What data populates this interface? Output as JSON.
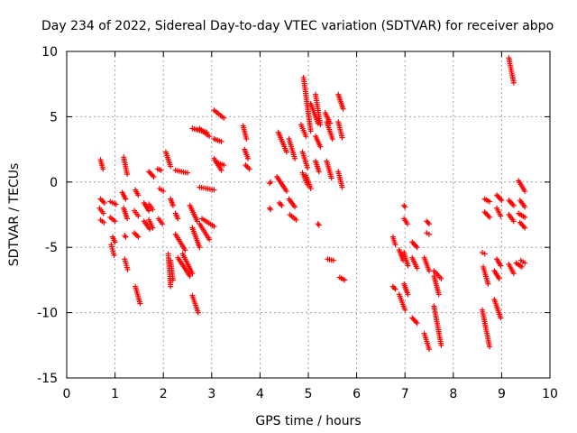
{
  "chart_data": {
    "type": "scatter",
    "title": "Day 234 of 2022, Sidereal Day-to-day VTEC variation (SDTVAR) for receiver abpo",
    "xlabel": "GPS time / hours",
    "ylabel": "SDTVAR / TECUs",
    "xlim": [
      0,
      10
    ],
    "ylim": [
      -15,
      10
    ],
    "x_ticks": [
      0,
      1,
      2,
      3,
      4,
      5,
      6,
      7,
      8,
      9,
      10
    ],
    "y_ticks": [
      -15,
      -10,
      -5,
      0,
      5,
      10
    ],
    "grid": true,
    "marker": "plus",
    "color": "#ff0000",
    "segments": [
      {
        "x0": 0.7,
        "y0": 1.7,
        "x1": 0.75,
        "y1": 1.0
      },
      {
        "x0": 0.7,
        "y0": -1.3,
        "x1": 0.78,
        "y1": -1.6
      },
      {
        "x0": 0.68,
        "y0": -2.0,
        "x1": 0.76,
        "y1": -2.4
      },
      {
        "x0": 0.7,
        "y0": -2.9,
        "x1": 0.77,
        "y1": -3.1
      },
      {
        "x0": 0.9,
        "y0": -1.5,
        "x1": 1.02,
        "y1": -1.7
      },
      {
        "x0": 0.9,
        "y0": -2.7,
        "x1": 1.0,
        "y1": -3.0
      },
      {
        "x0": 0.95,
        "y0": -4.2,
        "x1": 1.0,
        "y1": -4.6
      },
      {
        "x0": 0.92,
        "y0": -4.8,
        "x1": 0.98,
        "y1": -5.6
      },
      {
        "x0": 1.18,
        "y0": 1.9,
        "x1": 1.25,
        "y1": 0.6
      },
      {
        "x0": 1.15,
        "y0": -0.8,
        "x1": 1.22,
        "y1": -1.3
      },
      {
        "x0": 1.18,
        "y0": -2.0,
        "x1": 1.25,
        "y1": -2.8
      },
      {
        "x0": 1.2,
        "y0": -4.1,
        "x1": 1.22,
        "y1": -4.2
      },
      {
        "x0": 1.2,
        "y0": -5.9,
        "x1": 1.26,
        "y1": -6.7
      },
      {
        "x0": 1.42,
        "y0": -0.6,
        "x1": 1.48,
        "y1": -1.0
      },
      {
        "x0": 1.4,
        "y0": -2.2,
        "x1": 1.48,
        "y1": -2.6
      },
      {
        "x0": 1.4,
        "y0": -3.9,
        "x1": 1.48,
        "y1": -4.2
      },
      {
        "x0": 1.42,
        "y0": -8.0,
        "x1": 1.52,
        "y1": -9.3
      },
      {
        "x0": 1.6,
        "y0": -1.6,
        "x1": 1.7,
        "y1": -2.2
      },
      {
        "x0": 1.6,
        "y0": -3.0,
        "x1": 1.72,
        "y1": -3.6
      },
      {
        "x0": 1.7,
        "y0": 0.8,
        "x1": 1.8,
        "y1": 0.4
      },
      {
        "x0": 1.7,
        "y0": -1.7,
        "x1": 1.78,
        "y1": -2.1
      },
      {
        "x0": 1.7,
        "y0": -2.9,
        "x1": 1.78,
        "y1": -3.5
      },
      {
        "x0": 1.88,
        "y0": 1.0,
        "x1": 1.95,
        "y1": 0.9
      },
      {
        "x0": 1.92,
        "y0": -0.5,
        "x1": 2.0,
        "y1": -0.7
      },
      {
        "x0": 1.9,
        "y0": -2.8,
        "x1": 1.98,
        "y1": -3.2
      },
      {
        "x0": 2.05,
        "y0": 2.3,
        "x1": 2.15,
        "y1": 1.2
      },
      {
        "x0": 2.1,
        "y0": -5.5,
        "x1": 2.15,
        "y1": -8.0
      },
      {
        "x0": 2.15,
        "y0": -6.0,
        "x1": 2.2,
        "y1": -7.5
      },
      {
        "x0": 2.15,
        "y0": -1.3,
        "x1": 2.2,
        "y1": -1.8
      },
      {
        "x0": 2.25,
        "y0": 0.9,
        "x1": 2.5,
        "y1": 0.7
      },
      {
        "x0": 2.25,
        "y0": -2.4,
        "x1": 2.3,
        "y1": -2.8
      },
      {
        "x0": 2.25,
        "y0": -4.0,
        "x1": 2.45,
        "y1": -5.2
      },
      {
        "x0": 2.3,
        "y0": -5.8,
        "x1": 2.55,
        "y1": -7.2
      },
      {
        "x0": 2.4,
        "y0": -5.5,
        "x1": 2.6,
        "y1": -7.0
      },
      {
        "x0": 2.55,
        "y0": -1.8,
        "x1": 2.7,
        "y1": -3.0
      },
      {
        "x0": 2.6,
        "y0": 4.1,
        "x1": 2.9,
        "y1": 3.8
      },
      {
        "x0": 2.6,
        "y0": -3.5,
        "x1": 2.75,
        "y1": -5.0
      },
      {
        "x0": 2.6,
        "y0": -8.7,
        "x1": 2.72,
        "y1": -10.0
      },
      {
        "x0": 2.75,
        "y0": 4.1,
        "x1": 2.95,
        "y1": 3.5
      },
      {
        "x0": 2.75,
        "y0": -0.4,
        "x1": 3.05,
        "y1": -0.6
      },
      {
        "x0": 2.8,
        "y0": -2.8,
        "x1": 3.05,
        "y1": -3.4
      },
      {
        "x0": 2.75,
        "y0": -3.2,
        "x1": 2.95,
        "y1": -4.4
      },
      {
        "x0": 3.05,
        "y0": 5.5,
        "x1": 3.25,
        "y1": 4.9
      },
      {
        "x0": 3.05,
        "y0": 3.3,
        "x1": 3.2,
        "y1": 3.1
      },
      {
        "x0": 3.05,
        "y0": 1.8,
        "x1": 3.2,
        "y1": 0.9
      },
      {
        "x0": 3.1,
        "y0": 1.5,
        "x1": 3.25,
        "y1": 1.3
      },
      {
        "x0": 3.65,
        "y0": 4.3,
        "x1": 3.72,
        "y1": 3.3
      },
      {
        "x0": 3.68,
        "y0": 2.5,
        "x1": 3.75,
        "y1": 1.8
      },
      {
        "x0": 3.7,
        "y0": 1.3,
        "x1": 3.78,
        "y1": 1.0
      },
      {
        "x0": 4.2,
        "y0": -0.1,
        "x1": 4.22,
        "y1": 0.0
      },
      {
        "x0": 4.2,
        "y0": -2.0,
        "x1": 4.22,
        "y1": -2.1
      },
      {
        "x0": 4.38,
        "y0": 3.8,
        "x1": 4.55,
        "y1": 2.3
      },
      {
        "x0": 4.35,
        "y0": 0.4,
        "x1": 4.55,
        "y1": -0.7
      },
      {
        "x0": 4.4,
        "y0": -1.6,
        "x1": 4.45,
        "y1": -1.8
      },
      {
        "x0": 4.6,
        "y0": 3.3,
        "x1": 4.72,
        "y1": 1.8
      },
      {
        "x0": 4.6,
        "y0": -1.3,
        "x1": 4.72,
        "y1": -1.9
      },
      {
        "x0": 4.62,
        "y0": -2.5,
        "x1": 4.75,
        "y1": -2.9
      },
      {
        "x0": 4.85,
        "y0": 4.4,
        "x1": 4.95,
        "y1": 3.5
      },
      {
        "x0": 4.88,
        "y0": 2.3,
        "x1": 4.98,
        "y1": 1.1
      },
      {
        "x0": 4.88,
        "y0": 0.7,
        "x1": 4.98,
        "y1": -0.2
      },
      {
        "x0": 4.9,
        "y0": 8.0,
        "x1": 5.05,
        "y1": 3.9
      },
      {
        "x0": 4.95,
        "y0": 0.5,
        "x1": 5.05,
        "y1": -0.5
      },
      {
        "x0": 5.05,
        "y0": 6.0,
        "x1": 5.2,
        "y1": 4.5
      },
      {
        "x0": 5.15,
        "y0": 6.7,
        "x1": 5.25,
        "y1": 4.4
      },
      {
        "x0": 5.15,
        "y0": 3.5,
        "x1": 5.25,
        "y1": 2.7
      },
      {
        "x0": 5.15,
        "y0": 1.6,
        "x1": 5.22,
        "y1": 0.8
      },
      {
        "x0": 5.2,
        "y0": -3.2,
        "x1": 5.22,
        "y1": -3.3
      },
      {
        "x0": 5.35,
        "y0": 5.3,
        "x1": 5.45,
        "y1": 4.5
      },
      {
        "x0": 5.38,
        "y0": 4.6,
        "x1": 5.5,
        "y1": 3.3
      },
      {
        "x0": 5.38,
        "y0": 1.6,
        "x1": 5.48,
        "y1": 0.3
      },
      {
        "x0": 5.4,
        "y0": -5.9,
        "x1": 5.52,
        "y1": -6.0
      },
      {
        "x0": 5.62,
        "y0": 6.7,
        "x1": 5.72,
        "y1": 5.6
      },
      {
        "x0": 5.62,
        "y0": 4.6,
        "x1": 5.7,
        "y1": 3.4
      },
      {
        "x0": 5.62,
        "y0": 0.8,
        "x1": 5.7,
        "y1": -0.4
      },
      {
        "x0": 5.65,
        "y0": -7.3,
        "x1": 5.75,
        "y1": -7.5
      },
      {
        "x0": 6.75,
        "y0": -4.2,
        "x1": 6.8,
        "y1": -4.8
      },
      {
        "x0": 6.75,
        "y0": -8.0,
        "x1": 6.8,
        "y1": -8.2
      },
      {
        "x0": 6.88,
        "y0": -5.2,
        "x1": 6.96,
        "y1": -6.0
      },
      {
        "x0": 6.88,
        "y0": -8.6,
        "x1": 7.0,
        "y1": -9.8
      },
      {
        "x0": 6.98,
        "y0": -1.8,
        "x1": 7.0,
        "y1": -1.9
      },
      {
        "x0": 6.98,
        "y0": -2.8,
        "x1": 7.05,
        "y1": -3.2
      },
      {
        "x0": 6.98,
        "y0": -5.4,
        "x1": 7.06,
        "y1": -6.4
      },
      {
        "x0": 6.98,
        "y0": -7.8,
        "x1": 7.06,
        "y1": -8.6
      },
      {
        "x0": 7.15,
        "y0": -4.6,
        "x1": 7.25,
        "y1": -5.0
      },
      {
        "x0": 7.15,
        "y0": -5.8,
        "x1": 7.25,
        "y1": -6.6
      },
      {
        "x0": 7.15,
        "y0": -10.4,
        "x1": 7.25,
        "y1": -10.8
      },
      {
        "x0": 7.45,
        "y0": -3.0,
        "x1": 7.5,
        "y1": -3.2
      },
      {
        "x0": 7.45,
        "y0": -3.9,
        "x1": 7.5,
        "y1": -4.0
      },
      {
        "x0": 7.4,
        "y0": -5.8,
        "x1": 7.5,
        "y1": -6.8
      },
      {
        "x0": 7.4,
        "y0": -11.6,
        "x1": 7.5,
        "y1": -12.8
      },
      {
        "x0": 7.6,
        "y0": -6.8,
        "x1": 7.75,
        "y1": -7.4
      },
      {
        "x0": 7.6,
        "y0": -9.5,
        "x1": 7.75,
        "y1": -12.5
      },
      {
        "x0": 7.6,
        "y0": -7.2,
        "x1": 7.7,
        "y1": -8.6
      },
      {
        "x0": 8.6,
        "y0": -5.4,
        "x1": 8.65,
        "y1": -5.5
      },
      {
        "x0": 8.6,
        "y0": -9.8,
        "x1": 8.75,
        "y1": -12.6
      },
      {
        "x0": 8.62,
        "y0": -6.5,
        "x1": 8.72,
        "y1": -7.8
      },
      {
        "x0": 8.65,
        "y0": -1.3,
        "x1": 8.75,
        "y1": -1.5
      },
      {
        "x0": 8.65,
        "y0": -2.3,
        "x1": 8.75,
        "y1": -2.7
      },
      {
        "x0": 8.9,
        "y0": -5.9,
        "x1": 8.98,
        "y1": -6.4
      },
      {
        "x0": 8.85,
        "y0": -6.8,
        "x1": 8.95,
        "y1": -7.4
      },
      {
        "x0": 8.85,
        "y0": -9.0,
        "x1": 8.98,
        "y1": -10.4
      },
      {
        "x0": 8.9,
        "y0": -1.0,
        "x1": 9.0,
        "y1": -1.4
      },
      {
        "x0": 8.9,
        "y0": -2.0,
        "x1": 8.98,
        "y1": -2.6
      },
      {
        "x0": 9.15,
        "y0": 9.5,
        "x1": 9.25,
        "y1": 7.6
      },
      {
        "x0": 9.15,
        "y0": -1.4,
        "x1": 9.25,
        "y1": -1.8
      },
      {
        "x0": 9.15,
        "y0": -2.5,
        "x1": 9.25,
        "y1": -3.0
      },
      {
        "x0": 9.15,
        "y0": -6.3,
        "x1": 9.25,
        "y1": -7.0
      },
      {
        "x0": 9.35,
        "y0": 0.1,
        "x1": 9.48,
        "y1": -0.7
      },
      {
        "x0": 9.38,
        "y0": -1.4,
        "x1": 9.48,
        "y1": -1.9
      },
      {
        "x0": 9.35,
        "y0": -2.4,
        "x1": 9.48,
        "y1": -2.7
      },
      {
        "x0": 9.38,
        "y0": -3.1,
        "x1": 9.48,
        "y1": -3.5
      },
      {
        "x0": 9.3,
        "y0": -6.2,
        "x1": 9.42,
        "y1": -6.5
      },
      {
        "x0": 9.4,
        "y0": -6.0,
        "x1": 9.48,
        "y1": -6.2
      }
    ]
  }
}
